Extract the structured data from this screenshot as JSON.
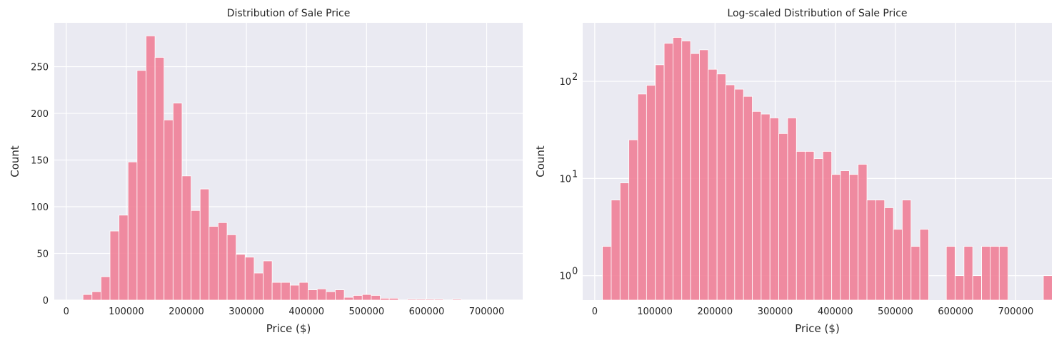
{
  "chart_data": [
    {
      "type": "bar",
      "title": "Distribution of Sale Price",
      "xlabel": "Price ($)",
      "ylabel": "Count",
      "y_scale": "linear",
      "xlim": [
        -20000,
        760000
      ],
      "ylim": [
        0,
        297
      ],
      "x_ticks": [
        0,
        100000,
        200000,
        300000,
        400000,
        500000,
        600000,
        700000
      ],
      "y_ticks": [
        0,
        50,
        100,
        150,
        200,
        250
      ],
      "grid": true,
      "bin_width": 15000,
      "bin_start": 12789,
      "values": [
        0,
        6,
        9,
        25,
        74,
        91,
        148,
        246,
        283,
        260,
        193,
        211,
        133,
        96,
        119,
        79,
        83,
        70,
        49,
        46,
        29,
        42,
        19,
        19,
        16,
        19,
        11,
        12,
        9,
        11,
        3,
        5,
        6,
        5,
        2,
        2,
        0,
        1,
        1,
        1,
        1,
        0,
        1,
        0,
        0,
        0,
        0,
        0,
        0,
        0
      ]
    },
    {
      "type": "bar",
      "title": "Log-scaled Distribution of Sale Price",
      "xlabel": "Price ($)",
      "ylabel": "Count",
      "y_scale": "log",
      "xlim": [
        -20000,
        760000
      ],
      "ylim": [
        0.56,
        400
      ],
      "x_ticks": [
        0,
        100000,
        200000,
        300000,
        400000,
        500000,
        600000,
        700000
      ],
      "y_ticks": [
        1,
        10,
        100
      ],
      "y_tick_labels": [
        [
          "10",
          "0"
        ],
        [
          "10",
          "1"
        ],
        [
          "10",
          "2"
        ]
      ],
      "grid": true,
      "bin_width": 14660,
      "bin_start": 12789,
      "values": [
        2,
        6,
        9,
        25,
        74,
        91,
        148,
        246,
        283,
        260,
        193,
        211,
        133,
        119,
        92,
        83,
        70,
        49,
        46,
        42,
        29,
        42,
        19,
        19,
        16,
        19,
        11,
        12,
        11,
        14,
        6,
        6,
        5,
        3,
        6,
        2,
        3,
        0,
        0,
        2,
        1,
        2,
        1,
        2,
        2,
        2,
        0,
        0,
        0,
        0,
        1
      ]
    }
  ]
}
